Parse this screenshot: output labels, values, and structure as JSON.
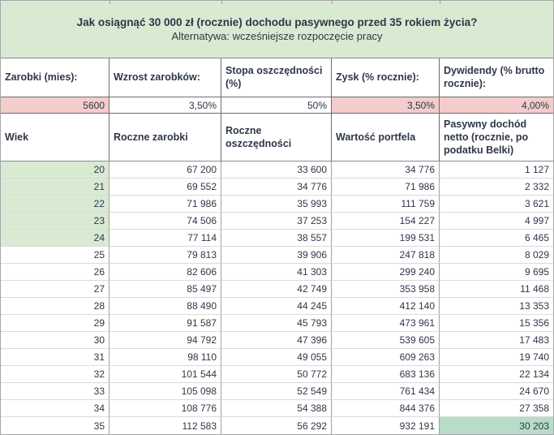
{
  "title": {
    "line1": "Jak osiągnąć 30 000 zł (rocznie) dochodu pasywnego przed 35 rokiem życia?",
    "line2": "Alternatywa: wcześniejsze rozpoczęcie pracy"
  },
  "params": {
    "columns": [
      {
        "label": "Zarobki (mies):",
        "value": "5600",
        "highlighted": true
      },
      {
        "label": "Wzrost zarobków:",
        "value": "3,50%",
        "highlighted": false
      },
      {
        "label": "Stopa oszczędności (%)",
        "value": "50%",
        "highlighted": false
      },
      {
        "label": "Zysk (% rocznie):",
        "value": "3,50%",
        "highlighted": true
      },
      {
        "label": "Dywidendy (% brutto rocznie):",
        "value": "4,00%",
        "highlighted": true
      }
    ]
  },
  "table": {
    "headers": [
      "Wiek",
      "Roczne zarobki",
      "Roczne oszczędności",
      "Wartość portfela",
      "Pasywny dochód netto (rocznie, po podatku Belki)"
    ],
    "rows": [
      [
        "20",
        "67 200",
        "33 600",
        "34 776",
        "1 127"
      ],
      [
        "21",
        "69 552",
        "34 776",
        "71 986",
        "2 332"
      ],
      [
        "22",
        "71 986",
        "35 993",
        "111 759",
        "3 621"
      ],
      [
        "23",
        "74 506",
        "37 253",
        "154 227",
        "4 997"
      ],
      [
        "24",
        "77 114",
        "38 557",
        "199 531",
        "6 465"
      ],
      [
        "25",
        "79 813",
        "39 906",
        "247 818",
        "8 029"
      ],
      [
        "26",
        "82 606",
        "41 303",
        "299 240",
        "9 695"
      ],
      [
        "27",
        "85 497",
        "42 749",
        "353 958",
        "11 468"
      ],
      [
        "28",
        "88 490",
        "44 245",
        "412 140",
        "13 353"
      ],
      [
        "29",
        "91 587",
        "45 793",
        "473 961",
        "15 356"
      ],
      [
        "30",
        "94 792",
        "47 396",
        "539 605",
        "17 483"
      ],
      [
        "31",
        "98 110",
        "49 055",
        "609 263",
        "19 740"
      ],
      [
        "32",
        "101 544",
        "50 772",
        "683 136",
        "22 134"
      ],
      [
        "33",
        "105 098",
        "52 549",
        "761 434",
        "24 670"
      ],
      [
        "34",
        "108 776",
        "54 388",
        "844 376",
        "27 358"
      ],
      [
        "35",
        "112 583",
        "56 292",
        "932 191",
        "30 203"
      ]
    ],
    "age_highlight_rows": [
      "20",
      "21",
      "22",
      "23",
      "24"
    ],
    "final_highlight": {
      "age": "35",
      "column_index": 4
    }
  },
  "colors": {
    "highlight_green": "#d9ead3",
    "highlight_mint": "#b7dcc8",
    "highlight_pink": "#f3cccb",
    "text": "#2e3748"
  }
}
